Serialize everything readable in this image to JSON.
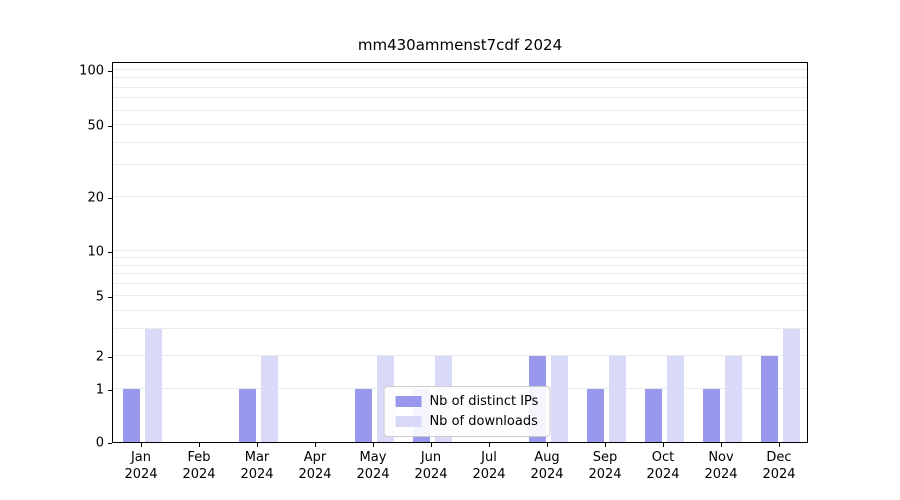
{
  "chart_data": {
    "type": "bar",
    "title": "mm430ammenst7cdf 2024",
    "categories": [
      "Jan",
      "Feb",
      "Mar",
      "Apr",
      "May",
      "Jun",
      "Jul",
      "Aug",
      "Sep",
      "Oct",
      "Nov",
      "Dec"
    ],
    "year_label": "2024",
    "series": [
      {
        "name": "Nb of distinct IPs",
        "color": "#9898ec",
        "values": [
          1,
          0,
          1,
          0,
          1,
          1,
          0,
          2,
          1,
          1,
          1,
          2
        ]
      },
      {
        "name": "Nb of downloads",
        "color": "#d9d9f8",
        "values": [
          3,
          0,
          2,
          0,
          2,
          2,
          0,
          2,
          2,
          2,
          2,
          3
        ]
      }
    ],
    "yticks": [
      0,
      1,
      2,
      5,
      10,
      20,
      50,
      100
    ],
    "minor_gridlines": [
      3,
      4,
      6,
      7,
      8,
      9,
      30,
      40,
      60,
      70,
      80,
      90
    ],
    "ylim": [
      0,
      120
    ],
    "scale": "symlog",
    "grid": "horizontal",
    "legend_position": "lower-center",
    "colors": {
      "grid": "#ebebeb",
      "axis": "#000000",
      "background": "#ffffff"
    }
  }
}
